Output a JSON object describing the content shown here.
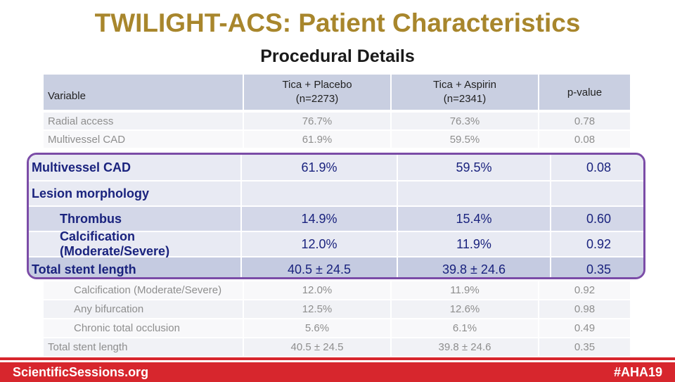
{
  "title": "TWILIGHT-ACS: Patient Characteristics",
  "subtitle": "Procedural Details",
  "table": {
    "headers": [
      "Variable",
      "Tica + Placebo\n(n=2273)",
      "Tica + Aspirin\n(n=2341)",
      "p-value"
    ],
    "header_lines": {
      "variable": "Variable",
      "placebo_1": "Tica + Placebo",
      "placebo_2": "(n=2273)",
      "aspirin_1": "Tica + Aspirin",
      "aspirin_2": "(n=2341)",
      "pvalue": "p-value"
    },
    "rows": [
      {
        "label": "Radial access",
        "placebo": "76.7%",
        "aspirin": "76.3%",
        "p": "0.78"
      },
      {
        "label": "Multivessel CAD",
        "placebo": "61.9%",
        "aspirin": "59.5%",
        "p": "0.08"
      },
      {
        "label": "Calcification (Moderate/Severe)",
        "placebo": "12.0%",
        "aspirin": "11.9%",
        "p": "0.92"
      },
      {
        "label": "Any bifurcation",
        "placebo": "12.5%",
        "aspirin": "12.6%",
        "p": "0.98"
      },
      {
        "label": "Chronic total occlusion",
        "placebo": "5.6%",
        "aspirin": "6.1%",
        "p": "0.49"
      },
      {
        "label": "Total stent length",
        "placebo": "40.5 ± 24.5",
        "aspirin": "39.8 ± 24.6",
        "p": "0.35"
      }
    ]
  },
  "callout": {
    "rows": [
      {
        "label": "Multivessel CAD",
        "placebo": "61.9%",
        "aspirin": "59.5%",
        "p": "0.08"
      },
      {
        "label": "Lesion morphology",
        "placebo": "",
        "aspirin": "",
        "p": ""
      },
      {
        "label": "Thrombus",
        "placebo": "14.9%",
        "aspirin": "15.4%",
        "p": "0.60"
      },
      {
        "label": "Calcification (Moderate/Severe)",
        "placebo": "12.0%",
        "aspirin": "11.9%",
        "p": "0.92"
      },
      {
        "label": "Total stent length",
        "placebo": "40.5 ± 24.5",
        "aspirin": "39.8 ± 24.6",
        "p": "0.35"
      }
    ]
  },
  "footer": {
    "left": "ScientificSessions.org",
    "right": "#AHA19"
  },
  "colors": {
    "title": "#a8862c",
    "callout_border": "#7b4ca7",
    "callout_text": "#1a237e",
    "footer_bg": "#d7262d"
  }
}
